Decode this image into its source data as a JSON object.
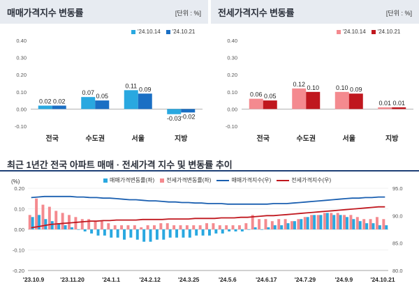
{
  "panels": {
    "sale": {
      "title": "매매가격지수 변동률",
      "unit": "[단위 : %]",
      "legend": [
        "'24.10.14",
        "'24.10.21"
      ],
      "colors": [
        "#29a8e0",
        "#1a6fc4"
      ]
    },
    "jeonse": {
      "title": "전세가격지수 변동률",
      "unit": "[단위 : %]",
      "legend": [
        "'24.10.14",
        "'24.10.21"
      ],
      "colors": [
        "#f48a8f",
        "#c0171e"
      ]
    },
    "trend": {
      "title": "최근 1년간 전국 아파트 매매 · 전세가격 지수 및 변동률 추이",
      "y_unit": "(%)",
      "legend": [
        "매매가격변동률(좌)",
        "전세가격변동률(좌)",
        "매매가격지수(우)",
        "전세가격지수(우)"
      ],
      "colors": [
        "#29a8e0",
        "#f48a8f",
        "#1a5fb0",
        "#c0171e"
      ]
    }
  },
  "chart_data": [
    {
      "type": "bar",
      "title": "매매가격지수 변동률",
      "categories": [
        "전국",
        "수도권",
        "서울",
        "지방"
      ],
      "series": [
        {
          "name": "'24.10.14",
          "values": [
            0.02,
            0.07,
            0.11,
            -0.03
          ]
        },
        {
          "name": "'24.10.21",
          "values": [
            0.02,
            0.05,
            0.09,
            -0.02
          ]
        }
      ],
      "data_labels": [
        [
          "0.02",
          "0.07",
          "0.11",
          "-0.03"
        ],
        [
          "0.02",
          "0.05",
          "0.09",
          "-0.02"
        ]
      ],
      "yticks": [
        "0.40",
        "0.30",
        "0.20",
        "0.10",
        "0.00",
        "-0.10"
      ],
      "ylim": [
        -0.1,
        0.4
      ]
    },
    {
      "type": "bar",
      "title": "전세가격지수 변동률",
      "categories": [
        "전국",
        "수도권",
        "서울",
        "지방"
      ],
      "series": [
        {
          "name": "'24.10.14",
          "values": [
            0.06,
            0.12,
            0.1,
            0.01
          ]
        },
        {
          "name": "'24.10.21",
          "values": [
            0.05,
            0.1,
            0.09,
            0.01
          ]
        }
      ],
      "data_labels": [
        [
          "0.06",
          "0.12",
          "0.10",
          "0.01"
        ],
        [
          "0.05",
          "0.10",
          "0.09",
          "0.01"
        ]
      ],
      "yticks": [
        "0.40",
        "0.30",
        "0.20",
        "0.10",
        "0.00",
        "-0.10"
      ],
      "ylim": [
        -0.1,
        0.4
      ]
    },
    {
      "type": "bar+line",
      "title": "최근 1년간 전국 아파트 매매 · 전세가격 지수 및 변동률 추이",
      "xticks": [
        "'23.10.9",
        "'23.11.20",
        "'24.1.1",
        "'24.2.12",
        "'24.3.25",
        "'24.5.6",
        "'24.6.17",
        "'24.7.29",
        "'24.9.9",
        "'24.10.21"
      ],
      "y_left_ticks": [
        "0.20",
        "0.10",
        "0.00",
        "-0.10",
        "-0.20"
      ],
      "y_left_lim": [
        -0.2,
        0.2
      ],
      "y_right_ticks": [
        "95.0",
        "90.0",
        "85.0",
        "80.0"
      ],
      "y_right_lim": [
        80,
        95
      ],
      "series": [
        {
          "name": "매매가격변동률(좌)",
          "kind": "bar",
          "values": [
            0.06,
            0.07,
            0.05,
            0.04,
            0.03,
            0.02,
            0.01,
            0.0,
            -0.01,
            -0.02,
            -0.03,
            -0.03,
            -0.04,
            -0.04,
            -0.05,
            -0.04,
            -0.05,
            -0.06,
            -0.06,
            -0.05,
            -0.05,
            -0.04,
            -0.04,
            -0.04,
            -0.04,
            -0.03,
            -0.03,
            -0.03,
            -0.02,
            -0.02,
            -0.01,
            -0.01,
            -0.01,
            0.0,
            0.01,
            0.0,
            0.01,
            0.02,
            0.02,
            0.03,
            0.04,
            0.05,
            0.06,
            0.07,
            0.07,
            0.08,
            0.07,
            0.07,
            0.06,
            0.05,
            0.04,
            0.03,
            0.03,
            0.02,
            0.02
          ]
        },
        {
          "name": "전세가격변동률(좌)",
          "kind": "bar",
          "values": [
            0.07,
            0.15,
            0.12,
            0.11,
            0.09,
            0.08,
            0.07,
            0.06,
            0.05,
            0.05,
            0.04,
            0.04,
            0.03,
            0.02,
            0.02,
            0.02,
            0.02,
            0.01,
            0.02,
            0.02,
            0.03,
            0.03,
            0.02,
            0.02,
            0.02,
            0.02,
            0.02,
            0.03,
            0.03,
            0.02,
            0.02,
            0.02,
            0.02,
            0.03,
            0.07,
            0.05,
            0.05,
            0.04,
            0.05,
            0.05,
            0.04,
            0.05,
            0.06,
            0.07,
            0.07,
            0.08,
            0.08,
            0.08,
            0.07,
            0.07,
            0.06,
            0.05,
            0.05,
            0.06,
            0.05
          ]
        },
        {
          "name": "매매가격지수(우)",
          "kind": "line",
          "values": [
            93.3,
            93.4,
            93.5,
            93.5,
            93.5,
            93.5,
            93.5,
            93.4,
            93.4,
            93.3,
            93.3,
            93.2,
            93.2,
            93.1,
            93.0,
            92.9,
            92.9,
            92.8,
            92.7,
            92.7,
            92.6,
            92.5,
            92.5,
            92.4,
            92.4,
            92.3,
            92.3,
            92.2,
            92.2,
            92.2,
            92.1,
            92.1,
            92.1,
            92.1,
            92.1,
            92.1,
            92.1,
            92.2,
            92.2,
            92.2,
            92.3,
            92.4,
            92.5,
            92.6,
            92.7,
            92.8,
            92.9,
            93.0,
            93.1,
            93.2,
            93.2,
            93.3,
            93.3,
            93.4,
            93.4
          ]
        },
        {
          "name": "전세가격지수(우)",
          "kind": "line",
          "values": [
            87.8,
            88.0,
            88.2,
            88.4,
            88.5,
            88.6,
            88.7,
            88.8,
            88.9,
            89.0,
            89.0,
            89.1,
            89.1,
            89.2,
            89.2,
            89.2,
            89.2,
            89.3,
            89.3,
            89.3,
            89.3,
            89.4,
            89.4,
            89.4,
            89.4,
            89.5,
            89.5,
            89.5,
            89.5,
            89.6,
            89.6,
            89.6,
            89.7,
            89.7,
            89.8,
            89.9,
            90.0,
            90.0,
            90.1,
            90.2,
            90.3,
            90.4,
            90.5,
            90.6,
            90.7,
            90.8,
            90.9,
            91.0,
            91.1,
            91.2,
            91.3,
            91.4,
            91.5,
            91.6,
            91.6
          ]
        }
      ]
    }
  ]
}
